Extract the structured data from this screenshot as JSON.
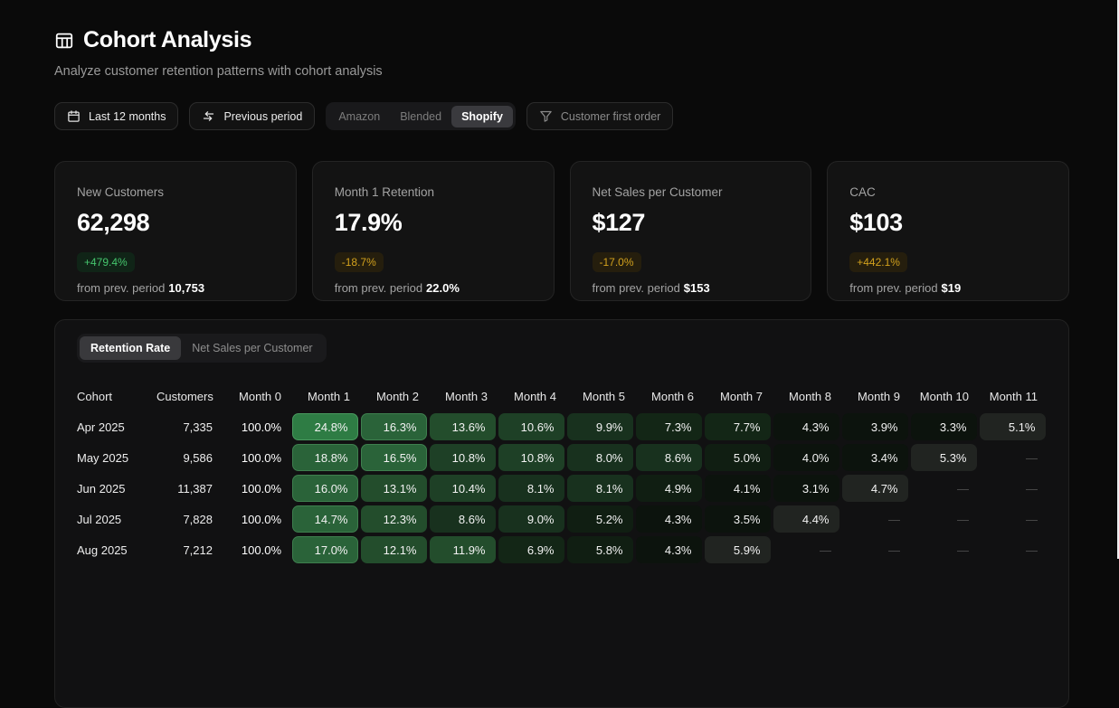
{
  "page": {
    "title": "Cohort Analysis",
    "subtitle": "Analyze customer retention patterns with cohort analysis"
  },
  "filters": {
    "date_range": "Last 12 months",
    "compare": "Previous period",
    "channels": [
      "Amazon",
      "Blended",
      "Shopify"
    ],
    "channel_selected": "Shopify",
    "customer_filter": "Customer first order"
  },
  "kpis": [
    {
      "label": "New Customers",
      "value": "62,298",
      "delta": "+479.4%",
      "tone": "positive",
      "prev_label": "from prev. period",
      "prev_value": "10,753"
    },
    {
      "label": "Month 1 Retention",
      "value": "17.9%",
      "delta": "-18.7%",
      "tone": "warning",
      "prev_label": "from prev. period",
      "prev_value": "22.0%"
    },
    {
      "label": "Net Sales per Customer",
      "value": "$127",
      "delta": "-17.0%",
      "tone": "warning",
      "prev_label": "from prev. period",
      "prev_value": "$153"
    },
    {
      "label": "CAC",
      "value": "$103",
      "delta": "+442.1%",
      "tone": "warning",
      "prev_label": "from prev. period",
      "prev_value": "$19"
    }
  ],
  "cohort_section": {
    "tabs": [
      {
        "label": "Retention Rate",
        "selected": true
      },
      {
        "label": "Net Sales per Customer",
        "selected": false
      }
    ]
  },
  "colors": {
    "positive_text": "#45c56d",
    "warning_text": "#d2a11d",
    "heat_green_max": "#2e7c44",
    "heat_highlight": "#212421",
    "page_bg": "#0a0a0a",
    "card_bg": "#131313"
  },
  "chart_data": {
    "type": "heatmap",
    "title": "Retention Rate",
    "empty_placeholder": "—",
    "columns": [
      "Cohort",
      "Customers",
      "Month 0",
      "Month 1",
      "Month 2",
      "Month 3",
      "Month 4",
      "Month 5",
      "Month 6",
      "Month 7",
      "Month 8",
      "Month 9",
      "Month 10",
      "Month 11"
    ],
    "rows": [
      {
        "cohort": "Apr 2025",
        "customers": "7,335",
        "months": [
          {
            "v": "100.0%",
            "s": "plain"
          },
          {
            "v": "24.8%",
            "s": "g7"
          },
          {
            "v": "16.3%",
            "s": "g6"
          },
          {
            "v": "13.6%",
            "s": "g5"
          },
          {
            "v": "10.6%",
            "s": "g4"
          },
          {
            "v": "9.9%",
            "s": "g3"
          },
          {
            "v": "7.3%",
            "s": "g2"
          },
          {
            "v": "7.7%",
            "s": "g2"
          },
          {
            "v": "4.3%",
            "s": "g0"
          },
          {
            "v": "3.9%",
            "s": "g0"
          },
          {
            "v": "3.3%",
            "s": "g0"
          },
          {
            "v": "5.1%",
            "s": "hl"
          }
        ]
      },
      {
        "cohort": "May 2025",
        "customers": "9,586",
        "months": [
          {
            "v": "100.0%",
            "s": "plain"
          },
          {
            "v": "18.8%",
            "s": "g6"
          },
          {
            "v": "16.5%",
            "s": "g6"
          },
          {
            "v": "10.8%",
            "s": "g4"
          },
          {
            "v": "10.8%",
            "s": "g4"
          },
          {
            "v": "8.0%",
            "s": "g3"
          },
          {
            "v": "8.6%",
            "s": "g3"
          },
          {
            "v": "5.0%",
            "s": "g1"
          },
          {
            "v": "4.0%",
            "s": "g0"
          },
          {
            "v": "3.4%",
            "s": "g0"
          },
          {
            "v": "5.3%",
            "s": "hl"
          },
          null
        ]
      },
      {
        "cohort": "Jun 2025",
        "customers": "11,387",
        "months": [
          {
            "v": "100.0%",
            "s": "plain"
          },
          {
            "v": "16.0%",
            "s": "g6"
          },
          {
            "v": "13.1%",
            "s": "g5"
          },
          {
            "v": "10.4%",
            "s": "g4"
          },
          {
            "v": "8.1%",
            "s": "g3"
          },
          {
            "v": "8.1%",
            "s": "g3"
          },
          {
            "v": "4.9%",
            "s": "g1"
          },
          {
            "v": "4.1%",
            "s": "g0"
          },
          {
            "v": "3.1%",
            "s": "g0"
          },
          {
            "v": "4.7%",
            "s": "hl"
          },
          null,
          null
        ]
      },
      {
        "cohort": "Jul 2025",
        "customers": "7,828",
        "months": [
          {
            "v": "100.0%",
            "s": "plain"
          },
          {
            "v": "14.7%",
            "s": "g6"
          },
          {
            "v": "12.3%",
            "s": "g5"
          },
          {
            "v": "8.6%",
            "s": "g3"
          },
          {
            "v": "9.0%",
            "s": "g3"
          },
          {
            "v": "5.2%",
            "s": "g1"
          },
          {
            "v": "4.3%",
            "s": "g0"
          },
          {
            "v": "3.5%",
            "s": "g0"
          },
          {
            "v": "4.4%",
            "s": "hl"
          },
          null,
          null,
          null
        ]
      },
      {
        "cohort": "Aug 2025",
        "customers": "7,212",
        "months": [
          {
            "v": "100.0%",
            "s": "plain"
          },
          {
            "v": "17.0%",
            "s": "g6"
          },
          {
            "v": "12.1%",
            "s": "g5"
          },
          {
            "v": "11.9%",
            "s": "g5"
          },
          {
            "v": "6.9%",
            "s": "g2"
          },
          {
            "v": "5.8%",
            "s": "g1"
          },
          {
            "v": "4.3%",
            "s": "g0"
          },
          {
            "v": "5.9%",
            "s": "hl"
          },
          null,
          null,
          null,
          null
        ]
      }
    ]
  }
}
